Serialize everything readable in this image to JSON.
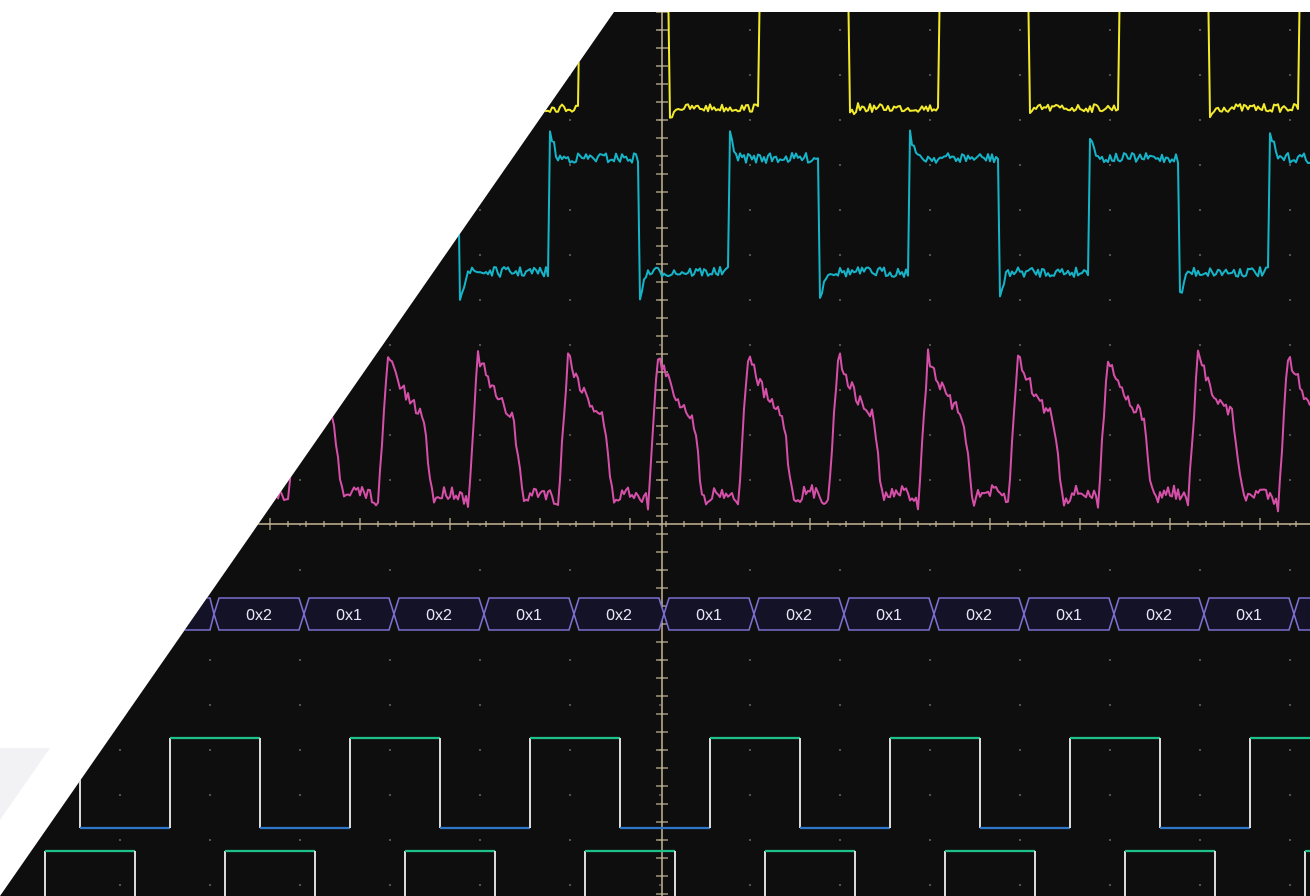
{
  "colors": {
    "background": "#ffffff",
    "screen": "#0e0e0e",
    "graticule": "#c8b89a",
    "channel_1": "#f2ea2b",
    "channel_2": "#16b4c8",
    "channel_3": "#d64fa8",
    "bus": "#7b6fd0",
    "digital_high": "#1fbf8a",
    "digital_low": "#2e76c8",
    "digital_edge": "#d9d9d9"
  },
  "bus": {
    "labels": [
      "0x2",
      "0x1",
      "0x2",
      "0x1",
      "0x2",
      "0x1",
      "0x2",
      "0x1",
      "0x2",
      "0x1",
      "0x2",
      "0x1"
    ]
  }
}
